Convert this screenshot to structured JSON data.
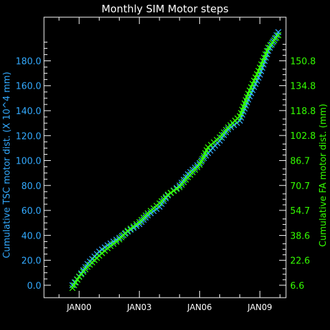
{
  "chart_data": {
    "type": "line",
    "title": "Monthly SIM Motor steps",
    "xlabel": "",
    "x_ticks": [
      "JAN00",
      "JAN03",
      "JAN06",
      "JAN09"
    ],
    "left_axis": {
      "label": "Cumulative TSC motor dist. (X 10^4 mm)",
      "ticks": [
        "0.0",
        "20.0",
        "40.0",
        "60.0",
        "80.0",
        "100.0",
        "120.0",
        "140.0",
        "160.0",
        "180.0"
      ],
      "ylim": [
        -10,
        215
      ],
      "color": "#33aaff"
    },
    "right_axis": {
      "label": "Cumulative FA motor dist. (mm)",
      "ticks": [
        "6.6",
        "22.6",
        "38.6",
        "54.7",
        "70.7",
        "86.7",
        "102.8",
        "118.8",
        "134.8",
        "150.8"
      ],
      "ylim": [
        -1.4,
        178.8
      ],
      "color": "#33ff00"
    },
    "series": [
      {
        "axis": "left",
        "color": "#33aaff",
        "x": [
          "1999-09",
          "2000-01",
          "2000-06",
          "2001-01",
          "2001-06",
          "2002-01",
          "2002-06",
          "2003-01",
          "2003-06",
          "2004-01",
          "2004-06",
          "2005-01",
          "2005-06",
          "2006-01",
          "2006-06",
          "2007-01",
          "2007-06",
          "2008-01",
          "2008-06",
          "2009-01",
          "2009-06",
          "2009-12"
        ],
        "values": [
          0,
          7,
          17,
          27,
          32,
          38,
          43,
          49,
          56,
          63,
          72,
          80,
          89,
          98,
          106,
          116,
          125,
          132,
          149,
          169,
          188,
          203
        ]
      },
      {
        "axis": "right",
        "color": "#33ff00",
        "x": [
          "1999-09",
          "2000-01",
          "2000-06",
          "2001-01",
          "2001-06",
          "2002-01",
          "2002-06",
          "2003-01",
          "2003-06",
          "2004-01",
          "2004-06",
          "2005-01",
          "2005-06",
          "2006-01",
          "2006-06",
          "2007-01",
          "2007-06",
          "2008-01",
          "2008-06",
          "2009-01",
          "2009-06",
          "2009-12"
        ],
        "values": [
          4.8,
          12.0,
          18.4,
          25.6,
          30.4,
          36.0,
          41.6,
          47.2,
          52.8,
          59.2,
          64.8,
          69.6,
          76.0,
          84.0,
          95.2,
          101.6,
          108.0,
          115.2,
          129.6,
          146.4,
          159.2,
          167.2
        ]
      }
    ]
  }
}
